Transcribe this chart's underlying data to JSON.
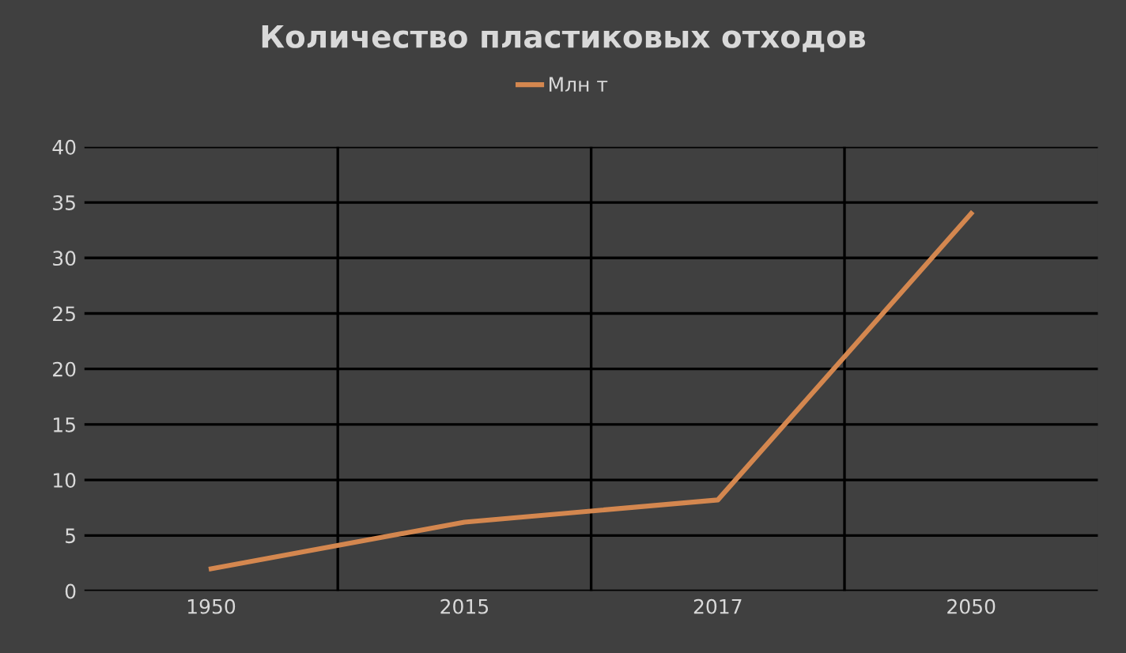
{
  "chart_data": {
    "type": "line",
    "title": "Количество пластиковых отходов",
    "categories": [
      "1950",
      "2015",
      "2017",
      "2050"
    ],
    "series": [
      {
        "name": "Млн т",
        "color": "#d4874f",
        "values": [
          2,
          6.2,
          8.2,
          34
        ]
      }
    ],
    "ylim": [
      0,
      40
    ],
    "yticks": [
      0,
      5,
      10,
      15,
      20,
      25,
      30,
      35,
      40
    ],
    "grid": true,
    "legend": "top",
    "marker": "none"
  }
}
